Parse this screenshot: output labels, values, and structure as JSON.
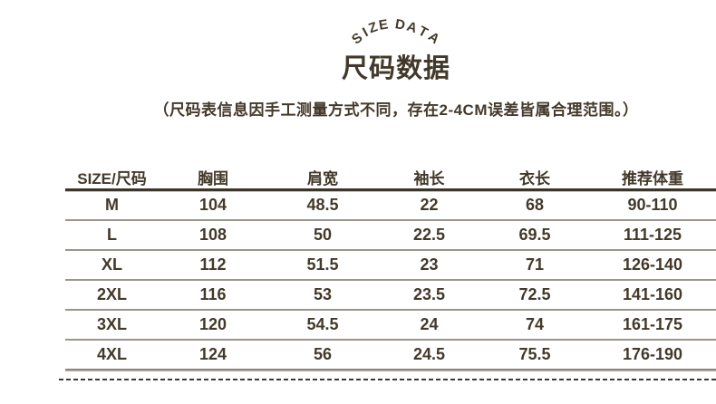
{
  "colors": {
    "text": "#43392a",
    "header_border": "#3b352b",
    "row_border": "#9a958d",
    "bottom_rule_top": "#7d7771",
    "bottom_rule_bottom": "#b7b1ab",
    "dash": "#3a3a38",
    "background": "#ffffff"
  },
  "header": {
    "arc_title": "SIZE DATA",
    "title": "尺码数据",
    "note": "（尺码表信息因手工测量方式不同，存在2-4CM误差皆属合理范围。）"
  },
  "table": {
    "columns": [
      "SIZE/尺码",
      "胸围",
      "肩宽",
      "袖长",
      "衣长",
      "推荐体重"
    ],
    "rows": [
      [
        "M",
        "104",
        "48.5",
        "22",
        "68",
        "90-110"
      ],
      [
        "L",
        "108",
        "50",
        "22.5",
        "69.5",
        "111-125"
      ],
      [
        "XL",
        "112",
        "51.5",
        "23",
        "71",
        "126-140"
      ],
      [
        "2XL",
        "116",
        "53",
        "23.5",
        "72.5",
        "141-160"
      ],
      [
        "3XL",
        "120",
        "54.5",
        "24",
        "74",
        "161-175"
      ],
      [
        "4XL",
        "124",
        "56",
        "24.5",
        "75.5",
        "176-190"
      ]
    ]
  }
}
